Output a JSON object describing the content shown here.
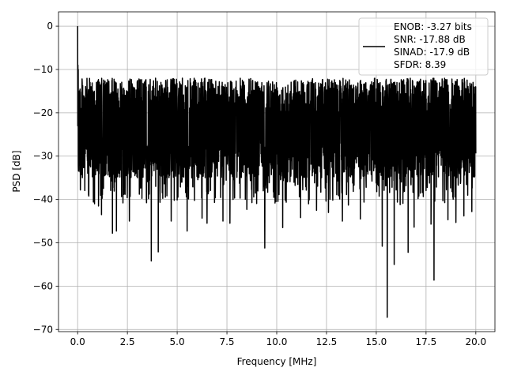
{
  "chart_data": {
    "type": "line",
    "title": "",
    "xlabel": "Frequency [MHz]",
    "ylabel": "PSD [dB]",
    "xlim": [
      -0.96,
      20.96
    ],
    "ylim": [
      -70.5,
      3.3
    ],
    "xticks": [
      0.0,
      2.5,
      5.0,
      7.5,
      10.0,
      12.5,
      15.0,
      17.5,
      20.0
    ],
    "xtick_labels": [
      "0.0",
      "2.5",
      "5.0",
      "7.5",
      "10.0",
      "12.5",
      "15.0",
      "17.5",
      "20.0"
    ],
    "yticks": [
      0,
      -10,
      -20,
      -30,
      -40,
      -50,
      -60,
      -70
    ],
    "ytick_labels": [
      "0",
      "−10",
      "−20",
      "−30",
      "−40",
      "−50",
      "−60",
      "−70"
    ],
    "grid": true,
    "legend_position": "top-right",
    "legend_lines": [
      "ENOB: -3.27 bits",
      "SNR: -17.88 dB",
      "SINAD: -17.9 dB",
      "SFDR: 8.39"
    ],
    "series": [
      {
        "color": "#000000",
        "x_range": [
          0,
          20
        ],
        "peak": [
          0,
          0
        ],
        "band_top_near": -12,
        "band_bottom_near": -35,
        "notable_dips": [
          [
            0.55,
            -38.9
          ],
          [
            0.85,
            -41
          ],
          [
            1.05,
            -41.5
          ],
          [
            1.2,
            -43.5
          ],
          [
            1.75,
            -47.8
          ],
          [
            1.95,
            -47.3
          ],
          [
            2.6,
            -45
          ],
          [
            3.1,
            -38.8
          ],
          [
            3.7,
            -54.2
          ],
          [
            4.05,
            -52.1
          ],
          [
            4.7,
            -45
          ],
          [
            5.5,
            -47.3
          ],
          [
            6.25,
            -44.3
          ],
          [
            6.5,
            -45.5
          ],
          [
            7.3,
            -45
          ],
          [
            7.65,
            -45.5
          ],
          [
            8.5,
            -42.3
          ],
          [
            9.4,
            -51.2
          ],
          [
            10.3,
            -46.5
          ],
          [
            11.2,
            -44.2
          ],
          [
            11.6,
            -41
          ],
          [
            12.0,
            -42.5
          ],
          [
            12.6,
            -43
          ],
          [
            13.3,
            -45
          ],
          [
            13.6,
            -41.3
          ],
          [
            14.2,
            -44.5
          ],
          [
            15.3,
            -50.8
          ],
          [
            15.55,
            -67.2
          ],
          [
            15.9,
            -55
          ],
          [
            16.2,
            -41.2
          ],
          [
            16.6,
            -52.2
          ],
          [
            16.9,
            -46.4
          ],
          [
            17.1,
            -39.8
          ],
          [
            17.75,
            -45.7
          ],
          [
            17.9,
            -58.6
          ],
          [
            18.6,
            -44.7
          ],
          [
            19.0,
            -45.3
          ],
          [
            19.4,
            -43.8
          ],
          [
            19.8,
            -42.8
          ]
        ]
      }
    ]
  }
}
